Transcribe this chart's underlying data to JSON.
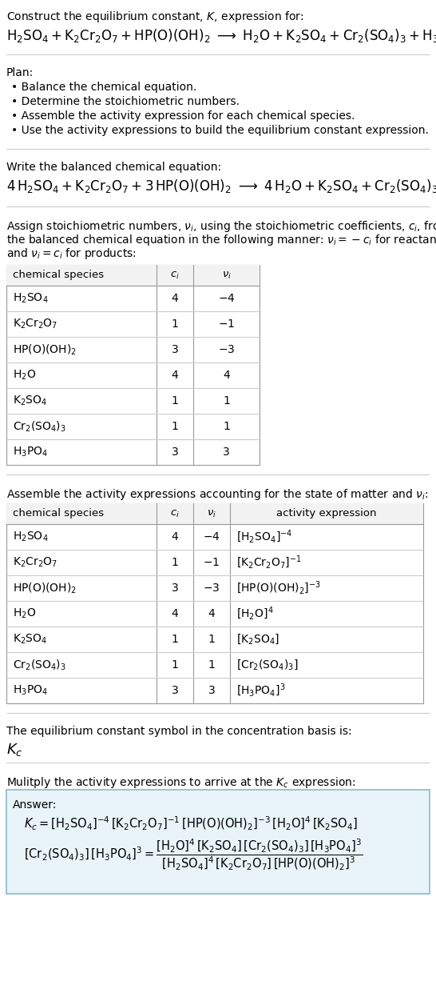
{
  "bg_color": "#ffffff",
  "text_color": "#000000",
  "table_border": "#999999",
  "table_row_div": "#cccccc",
  "answer_bg": "#e8f4f8",
  "answer_border": "#88bbcc",
  "section_div": "#cccccc",
  "title_line1": "Construct the equilibrium constant, $K$, expression for:",
  "plan_header": "Plan:",
  "plan_items": [
    "Balance the chemical equation.",
    "Determine the stoichiometric numbers.",
    "Assemble the activity expression for each chemical species.",
    "Use the activity expressions to build the equilibrium constant expression."
  ],
  "balanced_header": "Write the balanced chemical equation:",
  "table1_headers": [
    "chemical species",
    "$c_i$",
    "$\\nu_i$"
  ],
  "table1_rows": [
    [
      "$\\mathrm{H_2SO_4}$",
      "4",
      "$-4$"
    ],
    [
      "$\\mathrm{K_2Cr_2O_7}$",
      "1",
      "$-1$"
    ],
    [
      "$\\mathrm{HP(O)(OH)_2}$",
      "3",
      "$-3$"
    ],
    [
      "$\\mathrm{H_2O}$",
      "4",
      "4"
    ],
    [
      "$\\mathrm{K_2SO_4}$",
      "1",
      "1"
    ],
    [
      "$\\mathrm{Cr_2(SO_4)_3}$",
      "1",
      "1"
    ],
    [
      "$\\mathrm{H_3PO_4}$",
      "3",
      "3"
    ]
  ],
  "table2_headers": [
    "chemical species",
    "$c_i$",
    "$\\nu_i$",
    "activity expression"
  ],
  "table2_rows": [
    [
      "$\\mathrm{H_2SO_4}$",
      "4",
      "$-4$",
      "$[\\mathrm{H_2SO_4}]^{-4}$"
    ],
    [
      "$\\mathrm{K_2Cr_2O_7}$",
      "1",
      "$-1$",
      "$[\\mathrm{K_2Cr_2O_7}]^{-1}$"
    ],
    [
      "$\\mathrm{HP(O)(OH)_2}$",
      "3",
      "$-3$",
      "$[\\mathrm{HP(O)(OH)_2}]^{-3}$"
    ],
    [
      "$\\mathrm{H_2O}$",
      "4",
      "4",
      "$[\\mathrm{H_2O}]^{4}$"
    ],
    [
      "$\\mathrm{K_2SO_4}$",
      "1",
      "1",
      "$[\\mathrm{K_2SO_4}]$"
    ],
    [
      "$\\mathrm{Cr_2(SO_4)_3}$",
      "1",
      "1",
      "$[\\mathrm{Cr_2(SO_4)_3}]$"
    ],
    [
      "$\\mathrm{H_3PO_4}$",
      "3",
      "3",
      "$[\\mathrm{H_3PO_4}]^{3}$"
    ]
  ],
  "kc_label": "The equilibrium constant symbol in the concentration basis is:",
  "multiply_header": "Mulitply the activity expressions to arrive at the $K_c$ expression:"
}
